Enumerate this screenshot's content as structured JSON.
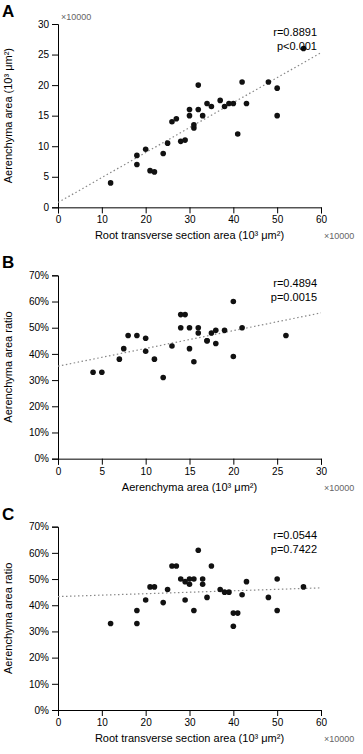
{
  "chart_data": [
    {
      "type": "scatter",
      "title": "A",
      "xlabel": "Root transverse section area (10³ μm²)",
      "ylabel": "Aerenchyma area (10³ μm²)",
      "x_note": "×10000",
      "y_note": "×10000",
      "stats": [
        "r=0.8891",
        "p<0.001"
      ],
      "xlim": [
        0,
        60
      ],
      "ylim": [
        0,
        30
      ],
      "xticks": [
        0,
        10,
        20,
        30,
        40,
        50,
        60
      ],
      "yticks": [
        0,
        5,
        10,
        15,
        20,
        25,
        30
      ],
      "grid": false,
      "series": [
        {
          "type": "scatter",
          "color": "#111111",
          "marker": "circle",
          "x": [
            12,
            18,
            18,
            20,
            21,
            22,
            24,
            25,
            26,
            27,
            28,
            29,
            30,
            30,
            31,
            31,
            32,
            32,
            33,
            34,
            35,
            37,
            38,
            39,
            40,
            41,
            42,
            43,
            48,
            50,
            50,
            56
          ],
          "values": [
            4,
            7,
            8.5,
            9.5,
            6,
            5.8,
            8.8,
            10.5,
            14,
            14.5,
            10.8,
            11,
            15,
            16,
            13,
            13.5,
            16,
            20,
            15,
            17,
            16.5,
            17.5,
            16.5,
            17,
            17,
            12,
            20.5,
            17,
            20.5,
            15,
            19.5,
            26
          ]
        },
        {
          "type": "line",
          "color": "#888888",
          "line_style": "dotted",
          "x": [
            0,
            60
          ],
          "values": [
            0.7825,
            25.3042
          ]
        }
      ]
    },
    {
      "type": "scatter",
      "title": "B",
      "xlabel": "Aerenchyma area (10³ μm²)",
      "ylabel": "Aerenchyma area ratio",
      "x_note": "×10000",
      "stats": [
        "r=0.4894",
        "p=0.0015"
      ],
      "xlim": [
        0,
        30
      ],
      "ylim": [
        0,
        0.7
      ],
      "xticks": [
        0,
        5,
        10,
        15,
        20,
        25,
        30
      ],
      "yticks": [
        {
          "value": 0.0,
          "label": "0%"
        },
        {
          "value": 0.1,
          "label": "10%"
        },
        {
          "value": 0.2,
          "label": "20%"
        },
        {
          "value": 0.3,
          "label": "30%"
        },
        {
          "value": 0.4,
          "label": "40%"
        },
        {
          "value": 0.5,
          "label": "50%"
        },
        {
          "value": 0.6,
          "label": "60%"
        },
        {
          "value": 0.7,
          "label": "70%"
        }
      ],
      "grid": false,
      "series": [
        {
          "type": "scatter",
          "color": "#111111",
          "marker": "circle",
          "x": [
            4,
            5,
            7,
            7.5,
            8,
            9,
            10,
            10,
            11,
            12,
            13,
            14,
            14,
            14.5,
            15,
            15,
            15.5,
            16,
            16,
            17,
            17,
            17.5,
            18,
            18,
            19,
            20,
            20,
            21,
            26
          ],
          "values": [
            0.33,
            0.33,
            0.38,
            0.42,
            0.47,
            0.47,
            0.41,
            0.46,
            0.38,
            0.31,
            0.43,
            0.5,
            0.55,
            0.55,
            0.42,
            0.5,
            0.37,
            0.48,
            0.5,
            0.45,
            0.45,
            0.48,
            0.44,
            0.49,
            0.49,
            0.6,
            0.39,
            0.5,
            0.47
          ]
        },
        {
          "type": "line",
          "color": "#888888",
          "line_style": "dotted",
          "x": [
            0,
            30
          ],
          "values": [
            0.353,
            0.5566
          ]
        }
      ]
    },
    {
      "type": "scatter",
      "title": "C",
      "xlabel": "Root transverse section area (10³ μm²)",
      "ylabel": "Aerenchyma area ratio",
      "x_note": "×10000",
      "stats": [
        "r=0.0544",
        "p=0.7422"
      ],
      "xlim": [
        0,
        60
      ],
      "ylim": [
        0,
        0.7
      ],
      "xticks": [
        0,
        10,
        20,
        30,
        40,
        50,
        60
      ],
      "yticks": [
        {
          "value": 0.0,
          "label": "0%"
        },
        {
          "value": 0.1,
          "label": "10%"
        },
        {
          "value": 0.2,
          "label": "20%"
        },
        {
          "value": 0.3,
          "label": "30%"
        },
        {
          "value": 0.4,
          "label": "40%"
        },
        {
          "value": 0.5,
          "label": "50%"
        },
        {
          "value": 0.6,
          "label": "60%"
        },
        {
          "value": 0.7,
          "label": "70%"
        }
      ],
      "grid": false,
      "series": [
        {
          "type": "scatter",
          "color": "#111111",
          "marker": "circle",
          "x": [
            12,
            18,
            18,
            20,
            21,
            22,
            24,
            25,
            26,
            27,
            28,
            29,
            29,
            30,
            30,
            31,
            31,
            32,
            33,
            33,
            34,
            35,
            37,
            38,
            39,
            40,
            40,
            41,
            42,
            43,
            48,
            50,
            50,
            56
          ],
          "values": [
            0.33,
            0.33,
            0.38,
            0.42,
            0.47,
            0.47,
            0.41,
            0.46,
            0.55,
            0.55,
            0.5,
            0.42,
            0.49,
            0.5,
            0.48,
            0.38,
            0.5,
            0.61,
            0.5,
            0.48,
            0.43,
            0.55,
            0.46,
            0.45,
            0.45,
            0.32,
            0.37,
            0.37,
            0.44,
            0.49,
            0.43,
            0.5,
            0.38,
            0.47
          ]
        },
        {
          "type": "line",
          "color": "#888888",
          "line_style": "dotted",
          "x": [
            0,
            60
          ],
          "values": [
            0.433,
            0.4663
          ]
        }
      ]
    }
  ]
}
